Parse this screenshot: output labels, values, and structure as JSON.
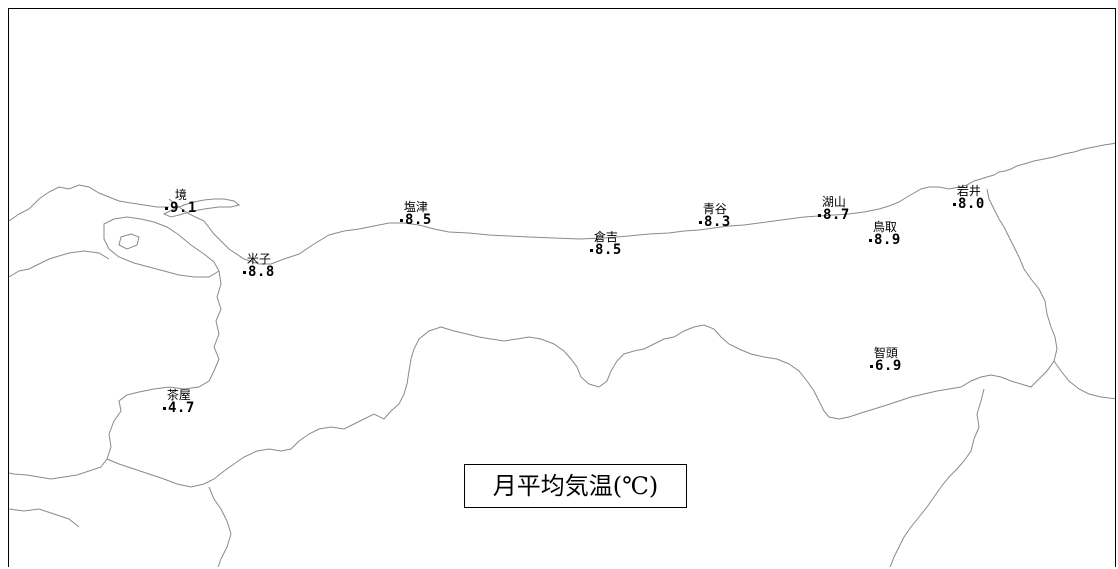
{
  "legend": {
    "title": "月平均気温(℃)"
  },
  "stations": [
    {
      "id": "sakai",
      "name": "境",
      "value": "9.1"
    },
    {
      "id": "shiotsu",
      "name": "塩津",
      "value": "8.5"
    },
    {
      "id": "aoya",
      "name": "青谷",
      "value": "8.3"
    },
    {
      "id": "koyama",
      "name": "湖山",
      "value": "8.7"
    },
    {
      "id": "iwai",
      "name": "岩井",
      "value": "8.0"
    },
    {
      "id": "yonago",
      "name": "米子",
      "value": "8.8"
    },
    {
      "id": "kurayoshi",
      "name": "倉吉",
      "value": "8.5"
    },
    {
      "id": "tottori",
      "name": "鳥取",
      "value": "8.9"
    },
    {
      "id": "chizu",
      "name": "智頭",
      "value": "6.9"
    },
    {
      "id": "chaya",
      "name": "茶屋",
      "value": "4.7"
    }
  ],
  "colors": {
    "coastline": "#8a8a8a",
    "text": "#000000",
    "background": "#ffffff"
  }
}
